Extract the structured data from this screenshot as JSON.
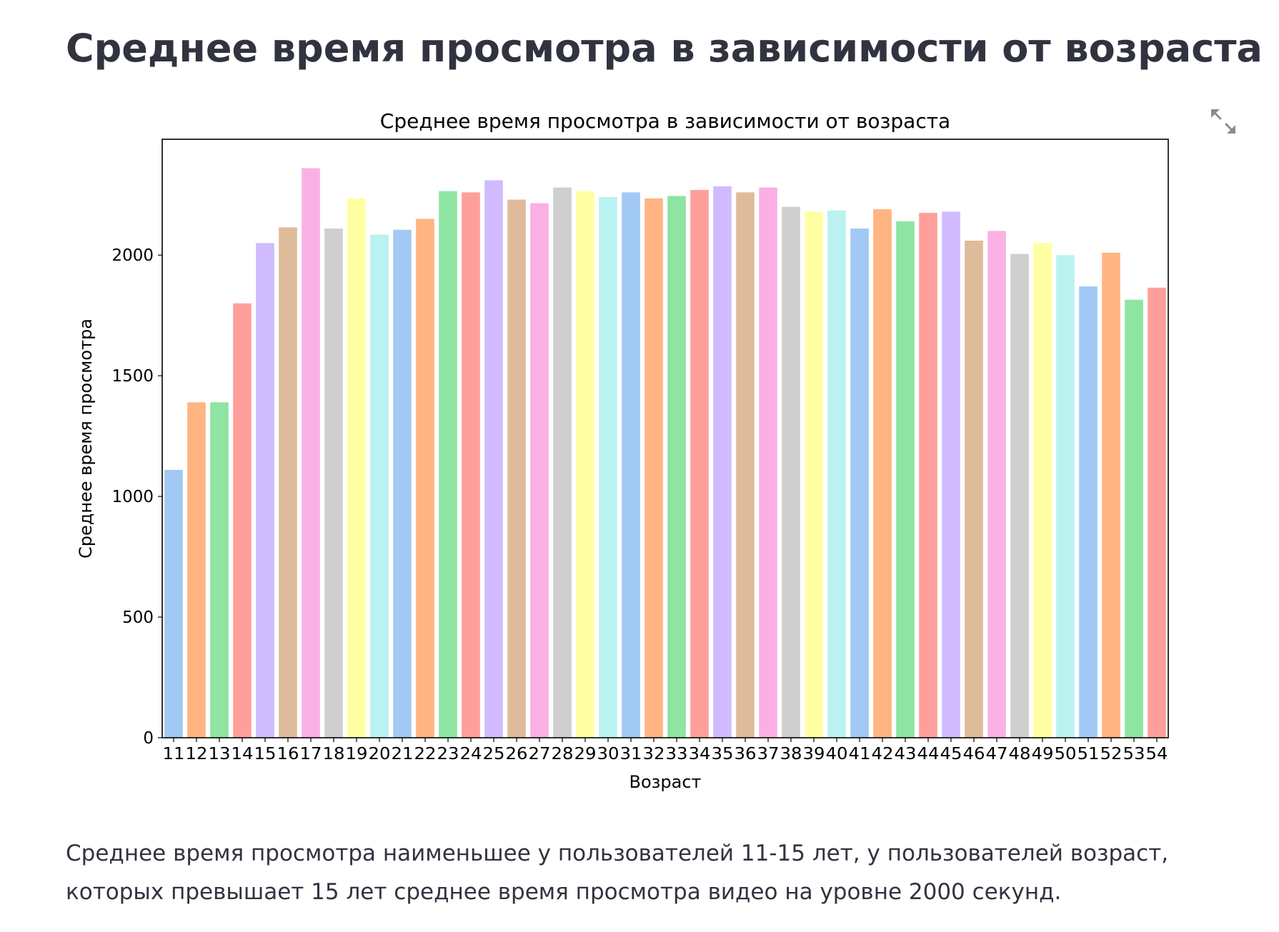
{
  "page": {
    "heading": "Среднее время просмотра в зависимости от возраста",
    "caption": "Среднее время просмотра наименьшее у пользователей 11-15 лет, у пользователей возраст, которых превышает 15 лет среднее время просмотра видео на уровне 2000 секунд.",
    "expand_icon": "fullscreen-expand-icon"
  },
  "chart_data": {
    "type": "bar",
    "title": "Среднее время просмотра в зависимости от возраста",
    "xlabel": "Возраст",
    "ylabel": "Среднее время просмотра",
    "ylim": [
      0,
      2480
    ],
    "yticks": [
      0,
      500,
      1000,
      1500,
      2000
    ],
    "grid": false,
    "legend": "none",
    "categories": [
      "11",
      "12",
      "13",
      "14",
      "15",
      "16",
      "17",
      "18",
      "19",
      "20",
      "21",
      "22",
      "23",
      "24",
      "25",
      "26",
      "27",
      "28",
      "29",
      "30",
      "31",
      "32",
      "33",
      "34",
      "35",
      "36",
      "37",
      "38",
      "39",
      "40",
      "41",
      "42",
      "43",
      "44",
      "45",
      "46",
      "47",
      "48",
      "49",
      "50",
      "51",
      "52",
      "53",
      "54"
    ],
    "values": [
      1110,
      1390,
      1390,
      1800,
      2050,
      2115,
      2360,
      2110,
      2235,
      2085,
      2105,
      2150,
      2265,
      2260,
      2310,
      2230,
      2215,
      2280,
      2265,
      2240,
      2260,
      2235,
      2245,
      2270,
      2285,
      2260,
      2280,
      2200,
      2180,
      2185,
      2110,
      2190,
      2140,
      2175,
      2180,
      2060,
      2100,
      2005,
      2050,
      2000,
      1870,
      2010,
      1815,
      1865
    ],
    "palette": [
      "#a1c9f4",
      "#ffb482",
      "#8de5a1",
      "#ff9f9b",
      "#d0bbff",
      "#debb9b",
      "#fab0e4",
      "#cfcfcf",
      "#fffea3",
      "#b9f2f0"
    ]
  }
}
